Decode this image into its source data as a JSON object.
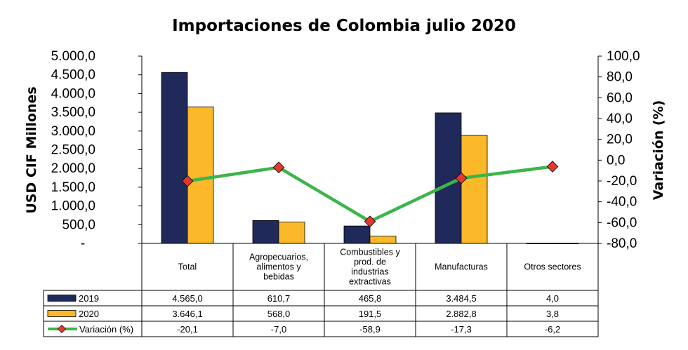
{
  "chart_data": {
    "type": "bar",
    "title": "Importaciones de Colombia julio 2020",
    "ylabel": "USD CIF Millones",
    "y2label": "Variación (%)",
    "ylim": [
      0,
      5000
    ],
    "y2lim": [
      -80,
      100
    ],
    "yticks": [
      "-",
      "500,0",
      "1.000,0",
      "1.500,0",
      "2.000,0",
      "2.500,0",
      "3.000,0",
      "3.500,0",
      "4.000,0",
      "4.500,0",
      "5.000,0"
    ],
    "y2ticks": [
      "-80,0",
      "-60,0",
      "-40,0",
      "-20,0",
      "0,0",
      "20,0",
      "40,0",
      "60,0",
      "80,0",
      "100,0"
    ],
    "categories": [
      [
        "Total"
      ],
      [
        "Agropecuarios,",
        "alimentos y",
        "bebidas"
      ],
      [
        "Combustibles y",
        "prod. de",
        "industrias",
        "extractivas"
      ],
      [
        "Manufacturas"
      ],
      [
        "Otros sectores"
      ]
    ],
    "series": [
      {
        "name": "2019",
        "type": "bar",
        "axis": "left",
        "color": "#1f2a5a",
        "values": [
          4565.0,
          610.7,
          465.8,
          3484.5,
          4.0
        ],
        "labels": [
          "4.565,0",
          "610,7",
          "465,8",
          "3.484,5",
          "4,0"
        ]
      },
      {
        "name": "2020",
        "type": "bar",
        "axis": "left",
        "color": "#fbb829",
        "values": [
          3646.1,
          568.0,
          191.5,
          2882.8,
          3.8
        ],
        "labels": [
          "3.646,1",
          "568,0",
          "191,5",
          "2.882,8",
          "3,8"
        ]
      },
      {
        "name": "Variación (%)",
        "type": "line",
        "axis": "right",
        "color": "#3cb54a",
        "marker_color": "#e03a2f",
        "values": [
          -20.1,
          -7.0,
          -58.9,
          -17.3,
          -6.2
        ],
        "labels": [
          "-20,1",
          "-7,0",
          "-58,9",
          "-17,3",
          "-6,2"
        ]
      }
    ],
    "grid": false,
    "legend": "table-left"
  }
}
